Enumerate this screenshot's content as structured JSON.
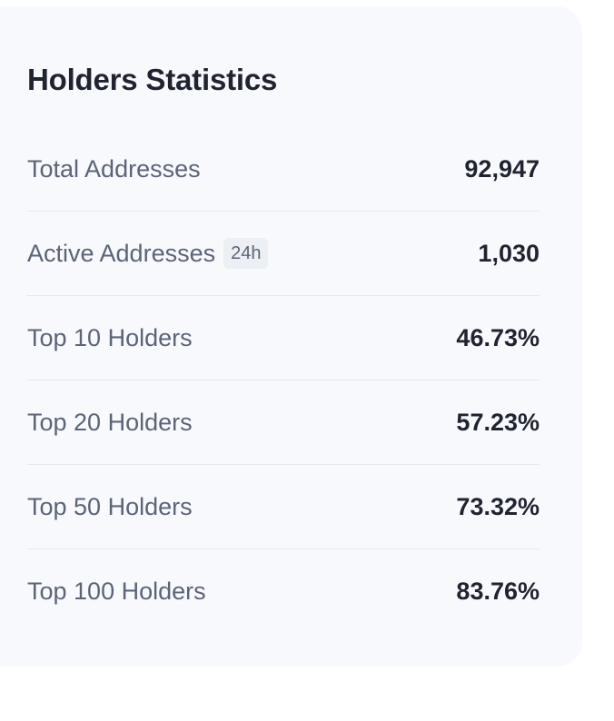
{
  "card": {
    "title": "Holders Statistics",
    "rows": [
      {
        "label": "Total Addresses",
        "value": "92,947"
      },
      {
        "label": "Active Addresses",
        "badge": "24h",
        "value": "1,030"
      },
      {
        "label": "Top 10 Holders",
        "value": "46.73%"
      },
      {
        "label": "Top 20 Holders",
        "value": "57.23%"
      },
      {
        "label": "Top 50 Holders",
        "value": "73.32%"
      },
      {
        "label": "Top 100 Holders",
        "value": "83.76%"
      }
    ]
  }
}
